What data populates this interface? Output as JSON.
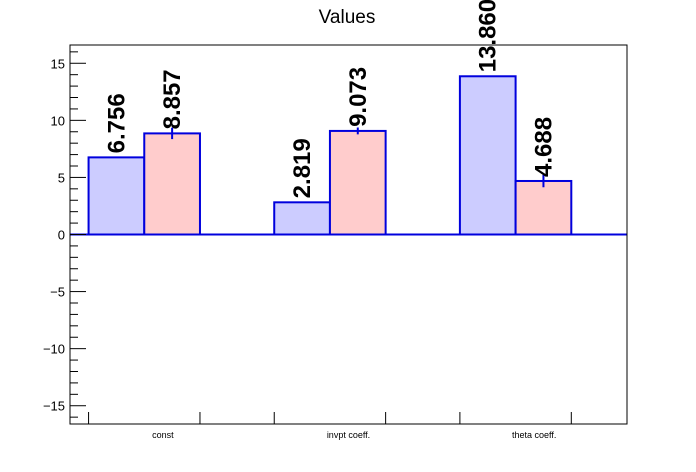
{
  "chart_data": {
    "type": "bar",
    "title": "Values",
    "xlabel": "",
    "ylabel": "",
    "categories": [
      "const",
      "invpt coeff.",
      "theta coeff."
    ],
    "series": [
      {
        "values": [
          6.756,
          2.819,
          13.86
        ],
        "errors": [
          0,
          0,
          0
        ],
        "labels": [
          "6.756",
          "2.819",
          "13.860"
        ],
        "fill": "#ccccff",
        "stroke": "#0000dd"
      },
      {
        "values": [
          8.857,
          9.073,
          4.688
        ],
        "errors": [
          0.5,
          0.3,
          0.55
        ],
        "labels": [
          "8.857",
          "9.073",
          "4.688"
        ],
        "fill": "#ffcccc",
        "stroke": "#0000dd"
      }
    ],
    "ylim": [
      -16.6,
      16.6
    ],
    "yticks": [
      {
        "value": -15,
        "label": "−15"
      },
      {
        "value": -10,
        "label": "−10"
      },
      {
        "value": -5,
        "label": "−5"
      },
      {
        "value": 0,
        "label": "0"
      },
      {
        "value": 5,
        "label": "5"
      },
      {
        "value": 10,
        "label": "10"
      },
      {
        "value": 15,
        "label": "15"
      }
    ],
    "grid": false,
    "legend": "none"
  }
}
